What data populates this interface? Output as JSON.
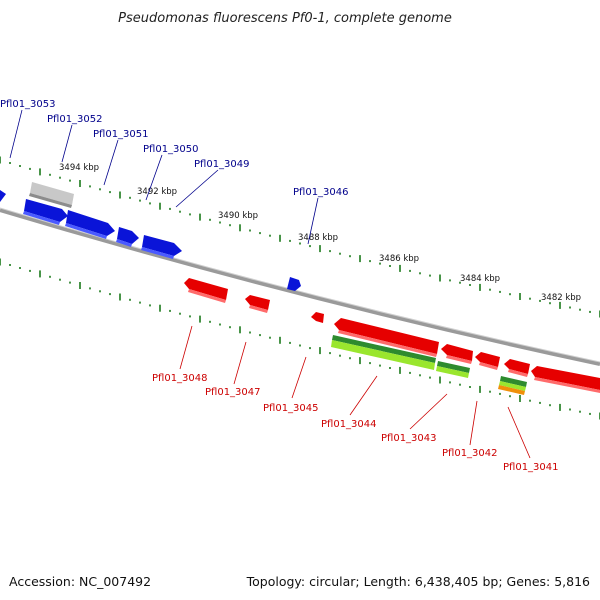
{
  "title": "Pseudomonas fluorescens Pf0-1, complete genome",
  "footer": {
    "accession": "Accession: NC_007492",
    "summary": "Topology: circular; Length: 6,438,405 bp; Genes: 5,816"
  },
  "colors": {
    "forward_gene": "#0a14d8",
    "reverse_gene": "#e60000",
    "forward_label": "#00008b",
    "reverse_label": "#cc0000",
    "backbone": "#888888",
    "ticks": "#1a7a1a",
    "track_dark_green": "#2e8b2e",
    "track_light_green": "#9ae62e",
    "track_orange": "#f0900a",
    "pseudo_gene": "#c0c0c0"
  },
  "kbp_labels": [
    "3494 kbp",
    "3492 kbp",
    "3490 kbp",
    "3488 kbp",
    "3486 kbp",
    "3484 kbp",
    "3482 kbp"
  ],
  "forward_genes": [
    "Pfl01_3053",
    "Pfl01_3052",
    "Pfl01_3051",
    "Pfl01_3050",
    "Pfl01_3049",
    "Pfl01_3046"
  ],
  "reverse_genes": [
    "Pfl01_3048",
    "Pfl01_3047",
    "Pfl01_3045",
    "Pfl01_3044",
    "Pfl01_3043",
    "Pfl01_3042",
    "Pfl01_3041"
  ]
}
